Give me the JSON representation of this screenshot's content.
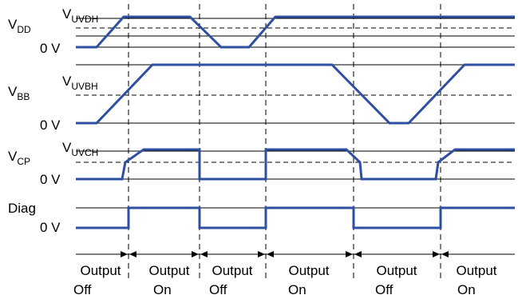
{
  "colors": {
    "waveform": "#2e4fa2",
    "lines": "#000000",
    "background": "#ffffff"
  },
  "signals": {
    "vdd": {
      "name": "V",
      "name_sub": "DD",
      "threshold": "V",
      "threshold_sub": "UVDH",
      "zero": "0 V"
    },
    "vbb": {
      "name": "V",
      "name_sub": "BB",
      "threshold": "V",
      "threshold_sub": "UVBH",
      "zero": "0 V"
    },
    "vcp": {
      "name": "V",
      "name_sub": "CP",
      "threshold": "V",
      "threshold_sub": "UVCH",
      "zero": "0 V"
    },
    "diag": {
      "name": "Diag",
      "zero": "0 V"
    }
  },
  "phases": [
    {
      "line1": "Output",
      "line2": "Off"
    },
    {
      "line1": "Output",
      "line2": "On"
    },
    {
      "line1": "Output",
      "line2": "Off"
    },
    {
      "line1": "Output",
      "line2": "On"
    },
    {
      "line1": "Output",
      "line2": "Off"
    },
    {
      "line1": "Output",
      "line2": "On"
    }
  ]
}
